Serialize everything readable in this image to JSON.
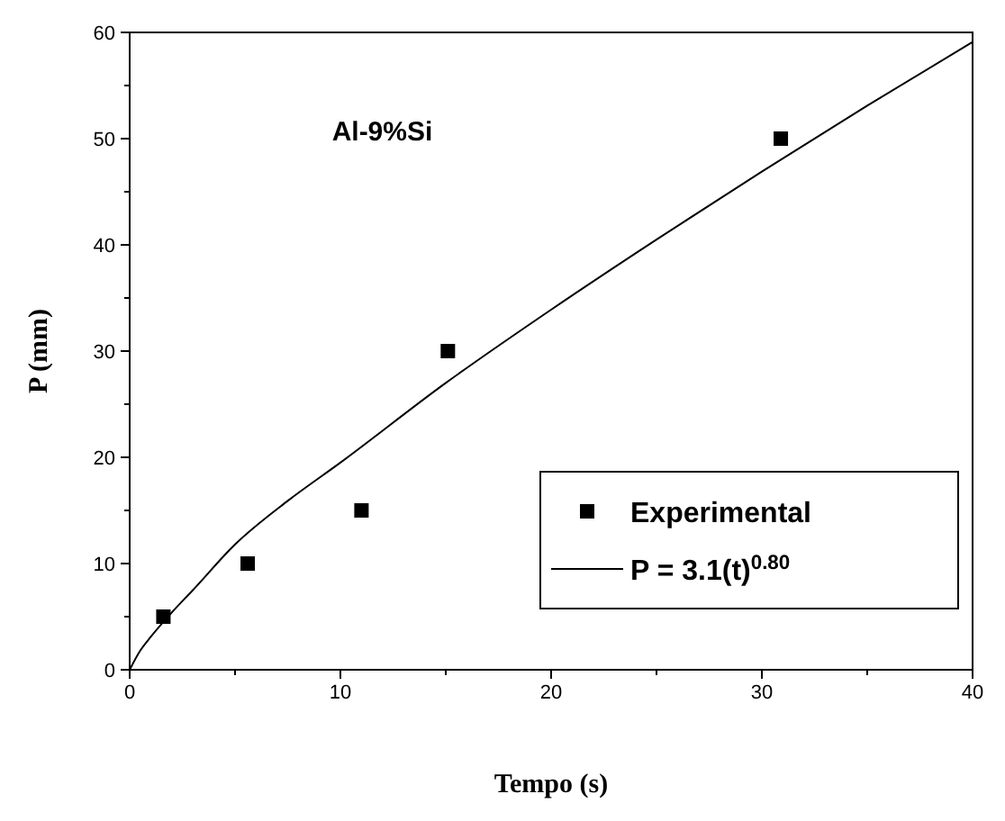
{
  "chart_data": {
    "type": "scatter",
    "xlabel": "Tempo (s)",
    "ylabel": "P (mm)",
    "xlim": [
      0,
      40
    ],
    "ylim": [
      0,
      60
    ],
    "xticks": [
      0,
      10,
      20,
      30,
      40
    ],
    "yticks": [
      0,
      10,
      20,
      30,
      40,
      50,
      60
    ],
    "grid": false,
    "legend": "bottom right",
    "annotations": [
      "Al-9%Si"
    ],
    "series": [
      {
        "name": "Experimental",
        "marker": "square",
        "color": "#000000",
        "x": [
          1.6,
          5.6,
          11,
          15.1,
          30.9
        ],
        "values": [
          5,
          10,
          15,
          30,
          50
        ]
      },
      {
        "name": "P = 3.1(t)$^{0.80}$",
        "type": "line",
        "marker": "none",
        "line_style": "solid",
        "color": "#000000",
        "x": [
          0,
          0.5,
          1,
          2,
          3,
          5,
          7.5,
          10,
          15,
          20,
          25,
          30,
          35,
          40
        ],
        "values": [
          0,
          1.8,
          3.1,
          5.4,
          7.5,
          11.8,
          15.9,
          19.5,
          27,
          33.9,
          40.5,
          46.9,
          53.1,
          59.1
        ]
      }
    ]
  }
}
